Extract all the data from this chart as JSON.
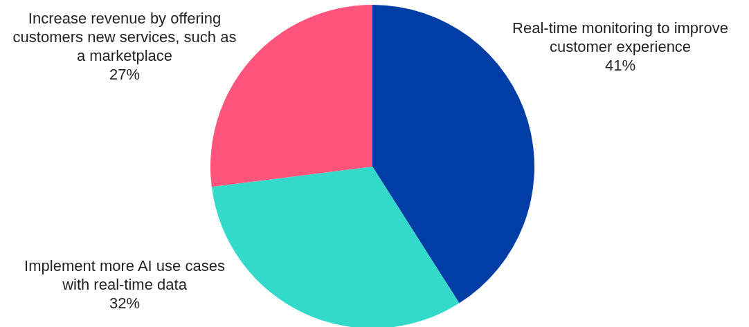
{
  "chart_data": {
    "type": "pie",
    "categories": [
      "Real-time monitoring to improve customer experience",
      "Implement more AI use cases with real-time data",
      "Increase revenue by offering customers new services, such as a marketplace"
    ],
    "values": [
      41,
      32,
      27
    ],
    "value_labels": [
      "41%",
      "32%",
      "27%"
    ],
    "colors": [
      "#003da5",
      "#33d9c9",
      "#ff547c"
    ]
  }
}
